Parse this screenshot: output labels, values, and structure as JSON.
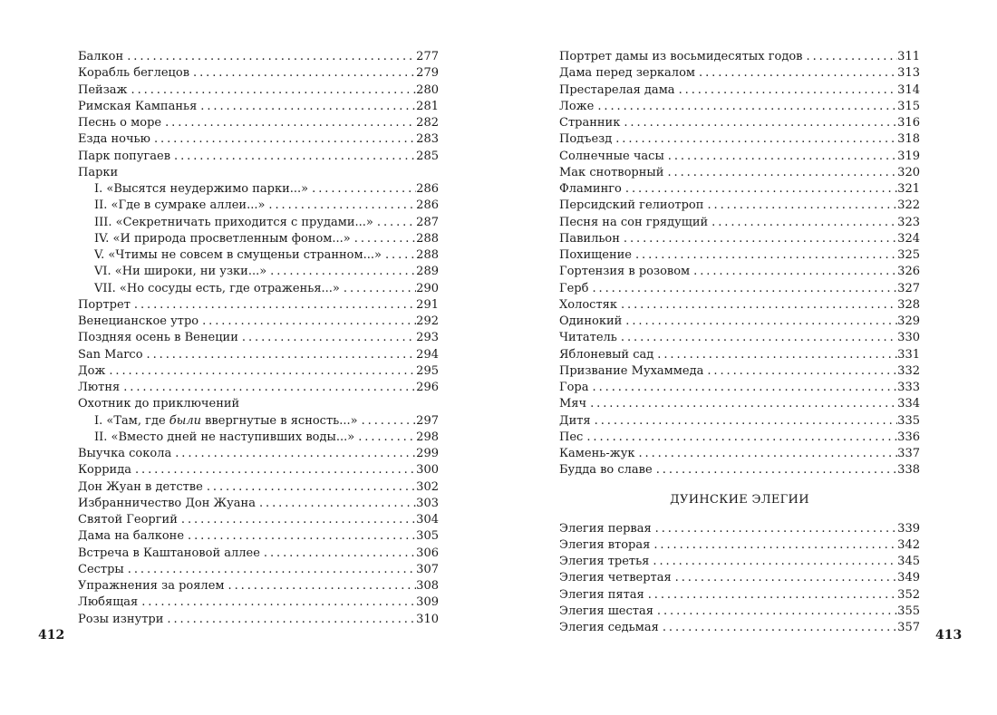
{
  "left": {
    "folio": "412",
    "entries": [
      {
        "t": "Балкон",
        "p": "277"
      },
      {
        "t": "Корабль беглецов",
        "p": "279"
      },
      {
        "t": "Пейзаж",
        "p": "280"
      },
      {
        "t": "Римская Кампанья",
        "p": "281"
      },
      {
        "t": "Песнь о море",
        "p": "282"
      },
      {
        "t": "Езда ночью",
        "p": "283"
      },
      {
        "t": "Парк попугаев",
        "p": "285"
      },
      {
        "t": "Парки",
        "p": ""
      },
      {
        "t": "I. «Высятся неудержимо парки...»",
        "p": "286",
        "sub": true
      },
      {
        "t": "II. «Где в сумраке аллеи...»",
        "p": "286",
        "sub": true
      },
      {
        "t": "III. «Секретничать приходится с прудами...»",
        "p": "287",
        "sub": true
      },
      {
        "t": "IV. «И природа просветленным фоном...»",
        "p": "288",
        "sub": true
      },
      {
        "t": "V. «Чтимы не совсем в смущеньи странном...»",
        "p": "288",
        "sub": true
      },
      {
        "t": "VI. «Ни широки, ни узки...»",
        "p": "289",
        "sub": true
      },
      {
        "t": "VII. «Но сосуды есть, где отраженья...»",
        "p": "290",
        "sub": true
      },
      {
        "t": "Портрет",
        "p": "291"
      },
      {
        "t": "Венецианское утро",
        "p": "292"
      },
      {
        "t": "Поздняя осень в Венеции",
        "p": "293"
      },
      {
        "t": "San Marco",
        "p": "294"
      },
      {
        "t": "Дож",
        "p": "295"
      },
      {
        "t": "Лютня",
        "p": "296"
      },
      {
        "t": "Охотник до приключений",
        "p": ""
      },
      {
        "t": "I. «Там, где ",
        "i": "были",
        "t2": " ввергнутые в ясность...»",
        "p": "297",
        "sub": true
      },
      {
        "t": "II. «Вместо дней не наступивших воды...»",
        "p": "298",
        "sub": true
      },
      {
        "t": "Выучка сокола",
        "p": "299"
      },
      {
        "t": "Коррида",
        "p": "300"
      },
      {
        "t": "Дон Жуан в детстве",
        "p": "302"
      },
      {
        "t": "Избранничество Дон Жуана",
        "p": "303"
      },
      {
        "t": "Святой Георгий",
        "p": "304"
      },
      {
        "t": "Дама на балконе",
        "p": "305"
      },
      {
        "t": "Встреча в Каштановой аллее",
        "p": "306"
      },
      {
        "t": "Сестры",
        "p": "307"
      },
      {
        "t": "Упражнения за роялем",
        "p": "308"
      },
      {
        "t": "Любящая",
        "p": "309"
      },
      {
        "t": "Розы изнутри",
        "p": "310"
      }
    ]
  },
  "right": {
    "folio": "413",
    "entries": [
      {
        "t": "Портрет дамы из восьмидесятых годов",
        "p": "311"
      },
      {
        "t": "Дама перед зеркалом",
        "p": "313"
      },
      {
        "t": "Престарелая дама",
        "p": "314"
      },
      {
        "t": "Ложе",
        "p": "315"
      },
      {
        "t": "Странник",
        "p": "316"
      },
      {
        "t": "Подъезд",
        "p": "318"
      },
      {
        "t": "Солнечные часы",
        "p": "319"
      },
      {
        "t": "Мак снотворный",
        "p": "320"
      },
      {
        "t": "Фламинго",
        "p": "321"
      },
      {
        "t": "Персидский гелиотроп",
        "p": "322"
      },
      {
        "t": "Песня на сон грядущий",
        "p": "323"
      },
      {
        "t": "Павильон",
        "p": "324"
      },
      {
        "t": "Похищение",
        "p": "325"
      },
      {
        "t": "Гортензия в розовом",
        "p": "326"
      },
      {
        "t": "Герб",
        "p": "327"
      },
      {
        "t": "Холостяк",
        "p": "328"
      },
      {
        "t": "Одинокий",
        "p": "329"
      },
      {
        "t": "Читатель",
        "p": "330"
      },
      {
        "t": "Яблоневый сад",
        "p": "331"
      },
      {
        "t": "Призвание Мухаммеда",
        "p": "332"
      },
      {
        "t": "Гора",
        "p": "333"
      },
      {
        "t": "Мяч",
        "p": "334"
      },
      {
        "t": "Дитя",
        "p": "335"
      },
      {
        "t": "Пес",
        "p": "336"
      },
      {
        "t": "Камень-жук",
        "p": "337"
      },
      {
        "t": "Будда во славе",
        "p": "338"
      }
    ],
    "section_title": "ДУИНСКИЕ ЭЛЕГИИ",
    "section_entries": [
      {
        "t": "Элегия первая",
        "p": "339"
      },
      {
        "t": "Элегия вторая",
        "p": "342"
      },
      {
        "t": "Элегия третья",
        "p": "345"
      },
      {
        "t": "Элегия четвертая",
        "p": "349"
      },
      {
        "t": "Элегия пятая",
        "p": "352"
      },
      {
        "t": "Элегия шестая",
        "p": "355"
      },
      {
        "t": "Элегия седьмая",
        "p": "357"
      }
    ]
  }
}
